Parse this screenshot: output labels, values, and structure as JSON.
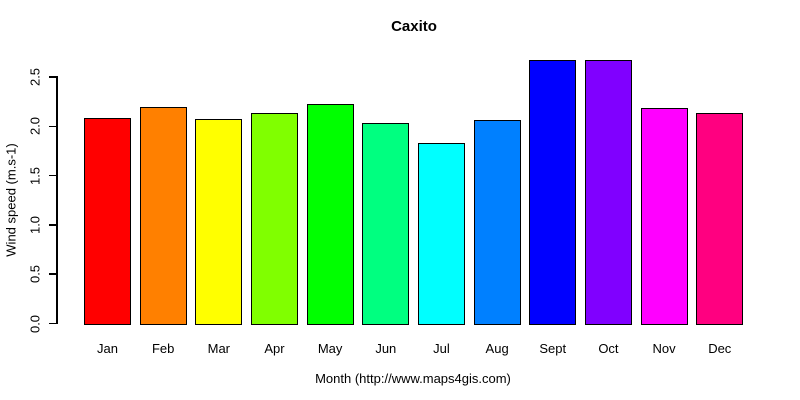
{
  "title": "Caxito",
  "chart_data": {
    "type": "bar",
    "title": "Caxito",
    "xlabel": "Month (http://www.maps4gis.com)",
    "ylabel": "Wind speed (m.s-1)",
    "categories": [
      "Jan",
      "Feb",
      "Mar",
      "Apr",
      "May",
      "Jun",
      "Jul",
      "Aug",
      "Sept",
      "Oct",
      "Nov",
      "Dec"
    ],
    "values": [
      2.08,
      2.2,
      2.07,
      2.14,
      2.23,
      2.03,
      1.83,
      2.06,
      2.67,
      2.67,
      2.19,
      2.14
    ],
    "bar_colors": [
      "#FF0000",
      "#FF8000",
      "#FFFF00",
      "#80FF00",
      "#00FF00",
      "#00FF80",
      "#00FFFF",
      "#0080FF",
      "#0000FF",
      "#8000FF",
      "#FF00FF",
      "#FF0080"
    ],
    "bar_border_color": "#000000",
    "yticks": [
      "0.0",
      "0.5",
      "1.0",
      "1.5",
      "2.0",
      "2.5"
    ],
    "ylim": [
      0,
      2.5
    ],
    "grid": false,
    "legend": "none",
    "background": "#FFFFFF",
    "axis_color": "#000000"
  }
}
